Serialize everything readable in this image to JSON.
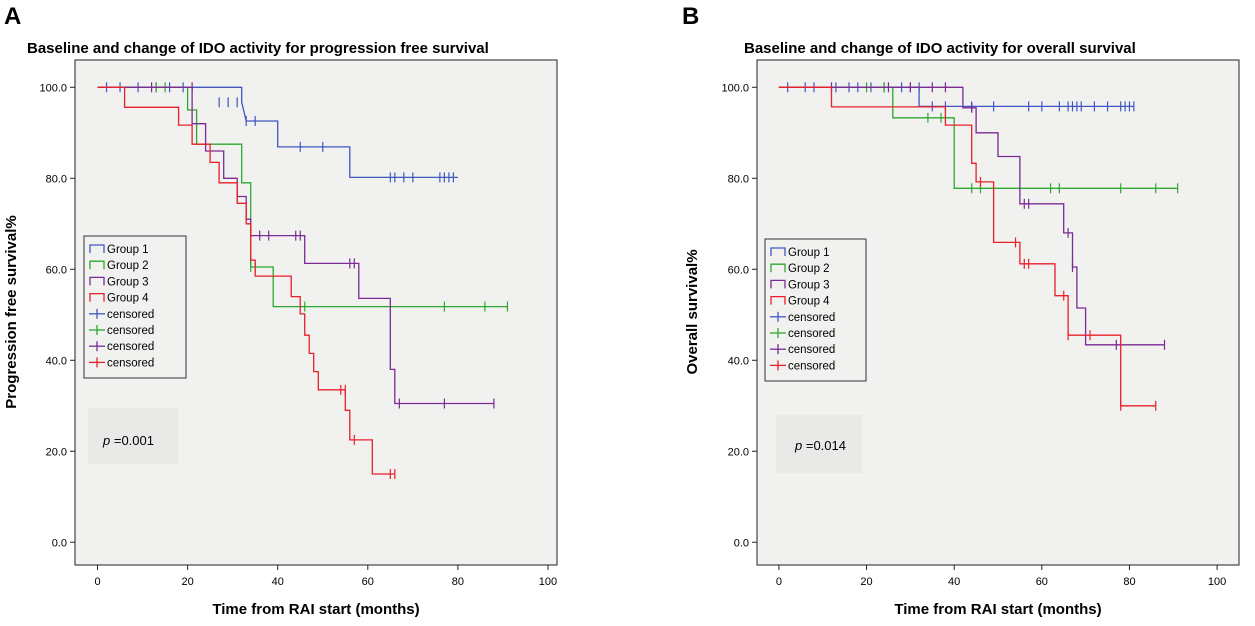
{
  "colors": {
    "group1": "#4058c0",
    "group2": "#2ea82e",
    "group3": "#7b2b93",
    "group4": "#e8202a",
    "plot_bg": "#f1f1f0"
  },
  "chart_data": [
    {
      "panel": "A",
      "type": "line",
      "title": "Baseline and change of IDO activity for progression free survival",
      "xlabel": "Time from RAI start (months)",
      "ylabel": "Progression free survival%",
      "xlim": [
        -5,
        102
      ],
      "ylim": [
        -5,
        106
      ],
      "xticks": [
        0,
        20,
        40,
        60,
        80,
        100
      ],
      "yticks": [
        0,
        20,
        40,
        60,
        80,
        100
      ],
      "ytick_labels": [
        "0.0",
        "20.0",
        "40.0",
        "60.0",
        "80.0",
        "100.0"
      ],
      "pvalue_p": "p",
      "pvalue_text": " =0.001",
      "legend": [
        "Group 1",
        "Group 2",
        "Group 3",
        "Group 4",
        "censored",
        "censored",
        "censored",
        "censored"
      ],
      "series": [
        {
          "name": "Group 1",
          "color_key": "group1",
          "steps": [
            [
              0,
              100
            ],
            [
              32,
              100
            ],
            [
              32,
              96.7
            ],
            [
              33,
              92.6
            ],
            [
              40,
              92.6
            ],
            [
              40,
              86.9
            ],
            [
              48,
              86.9
            ],
            [
              56,
              86.9
            ],
            [
              56,
              80.2
            ],
            [
              80,
              80.2
            ]
          ],
          "censored": [
            [
              2,
              100
            ],
            [
              5,
              100
            ],
            [
              9,
              100
            ],
            [
              13,
              100
            ],
            [
              16,
              100
            ],
            [
              19,
              100
            ],
            [
              27,
              96.7
            ],
            [
              29,
              96.7
            ],
            [
              31,
              96.7
            ],
            [
              33,
              92.6
            ],
            [
              35,
              92.6
            ],
            [
              45,
              86.9
            ],
            [
              50,
              86.9
            ],
            [
              65,
              80.2
            ],
            [
              66,
              80.2
            ],
            [
              68,
              80.2
            ],
            [
              70,
              80.2
            ],
            [
              76,
              80.2
            ],
            [
              77,
              80.2
            ],
            [
              78,
              80.2
            ],
            [
              79,
              80.2
            ]
          ]
        },
        {
          "name": "Group 2",
          "color_key": "group2",
          "steps": [
            [
              0,
              100
            ],
            [
              20,
              100
            ],
            [
              20,
              95
            ],
            [
              22,
              95
            ],
            [
              22,
              87.5
            ],
            [
              32,
              87.5
            ],
            [
              32,
              79
            ],
            [
              34,
              79
            ],
            [
              34,
              60.5
            ],
            [
              39,
              60.5
            ],
            [
              39,
              51.8
            ],
            [
              91,
              51.8
            ]
          ],
          "censored": [
            [
              13,
              100
            ],
            [
              15,
              100
            ],
            [
              34,
              60.5
            ],
            [
              35,
              60.5
            ],
            [
              46,
              51.8
            ],
            [
              77,
              51.8
            ],
            [
              86,
              51.8
            ],
            [
              91,
              51.8
            ]
          ]
        },
        {
          "name": "Group 3",
          "color_key": "group3",
          "steps": [
            [
              0,
              100
            ],
            [
              21,
              100
            ],
            [
              21,
              92
            ],
            [
              24,
              92
            ],
            [
              24,
              86
            ],
            [
              28,
              86
            ],
            [
              28,
              80
            ],
            [
              31,
              80
            ],
            [
              31,
              76
            ],
            [
              33,
              76
            ],
            [
              33,
              71
            ],
            [
              34,
              71
            ],
            [
              34,
              67.4
            ],
            [
              46,
              67.4
            ],
            [
              46,
              61.3
            ],
            [
              58,
              61.3
            ],
            [
              58,
              53.6
            ],
            [
              65,
              53.6
            ],
            [
              65,
              38
            ],
            [
              66,
              38
            ],
            [
              66,
              30.5
            ],
            [
              88,
              30.5
            ]
          ],
          "censored": [
            [
              12,
              100
            ],
            [
              21,
              100
            ],
            [
              31,
              76
            ],
            [
              36,
              67.4
            ],
            [
              38,
              67.4
            ],
            [
              44,
              67.4
            ],
            [
              45,
              67.4
            ],
            [
              56,
              61.3
            ],
            [
              57,
              61.3
            ],
            [
              67,
              30.5
            ],
            [
              77,
              30.5
            ],
            [
              88,
              30.5
            ]
          ]
        },
        {
          "name": "Group 4",
          "color_key": "group4",
          "steps": [
            [
              0,
              100
            ],
            [
              6,
              100
            ],
            [
              6,
              95.6
            ],
            [
              18,
              95.6
            ],
            [
              18,
              91.7
            ],
            [
              21,
              91.7
            ],
            [
              21,
              87.5
            ],
            [
              25,
              87.5
            ],
            [
              25,
              83.5
            ],
            [
              27,
              83.5
            ],
            [
              27,
              79
            ],
            [
              31,
              79
            ],
            [
              31,
              74.5
            ],
            [
              33,
              74.5
            ],
            [
              33,
              70
            ],
            [
              34,
              70
            ],
            [
              34,
              62
            ],
            [
              35,
              62
            ],
            [
              35,
              58.5
            ],
            [
              43,
              58.5
            ],
            [
              43,
              54
            ],
            [
              45,
              54
            ],
            [
              45,
              50.2
            ],
            [
              46,
              50.2
            ],
            [
              46,
              45.5
            ],
            [
              47,
              45.5
            ],
            [
              47,
              41.5
            ],
            [
              48,
              41.5
            ],
            [
              48,
              37.5
            ],
            [
              49,
              37.5
            ],
            [
              49,
              33.5
            ],
            [
              55,
              33.5
            ],
            [
              55,
              29
            ],
            [
              56,
              29
            ],
            [
              56,
              22.5
            ],
            [
              61,
              22.5
            ],
            [
              61,
              15
            ],
            [
              66,
              15
            ]
          ],
          "censored": [
            [
              54,
              33.5
            ],
            [
              55,
              33.5
            ],
            [
              57,
              22.5
            ],
            [
              65,
              15
            ],
            [
              66,
              15
            ]
          ]
        }
      ]
    },
    {
      "panel": "B",
      "type": "line",
      "title": "Baseline and change of IDO activity for overall survival",
      "xlabel": "Time from RAI start (months)",
      "ylabel": "Overall survival%",
      "xlim": [
        -5,
        105
      ],
      "ylim": [
        -5,
        106
      ],
      "xticks": [
        0,
        20,
        40,
        60,
        80,
        100
      ],
      "yticks": [
        0,
        20,
        40,
        60,
        80,
        100
      ],
      "ytick_labels": [
        "0.0",
        "20.0",
        "40.0",
        "60.0",
        "80.0",
        "100.0"
      ],
      "pvalue_p": "p",
      "pvalue_text": " =0.014",
      "legend": [
        "Group 1",
        "Group 2",
        "Group 3",
        "Group 4",
        "censored",
        "censored",
        "censored",
        "censored"
      ],
      "series": [
        {
          "name": "Group 1",
          "color_key": "group1",
          "steps": [
            [
              0,
              100
            ],
            [
              32,
              100
            ],
            [
              32,
              95.8
            ],
            [
              81,
              95.8
            ]
          ],
          "censored": [
            [
              2,
              100
            ],
            [
              6,
              100
            ],
            [
              8,
              100
            ],
            [
              13,
              100
            ],
            [
              16,
              100
            ],
            [
              18,
              100
            ],
            [
              21,
              100
            ],
            [
              24,
              100
            ],
            [
              28,
              100
            ],
            [
              30,
              100
            ],
            [
              32,
              100
            ],
            [
              35,
              95.8
            ],
            [
              38,
              95.8
            ],
            [
              44,
              95.8
            ],
            [
              49,
              95.8
            ],
            [
              57,
              95.8
            ],
            [
              60,
              95.8
            ],
            [
              64,
              95.8
            ],
            [
              66,
              95.8
            ],
            [
              67,
              95.8
            ],
            [
              68,
              95.8
            ],
            [
              69,
              95.8
            ],
            [
              72,
              95.8
            ],
            [
              75,
              95.8
            ],
            [
              78,
              95.8
            ],
            [
              79,
              95.8
            ],
            [
              80,
              95.8
            ],
            [
              81,
              95.8
            ]
          ]
        },
        {
          "name": "Group 2",
          "color_key": "group2",
          "steps": [
            [
              0,
              100
            ],
            [
              26,
              100
            ],
            [
              26,
              93.3
            ],
            [
              40,
              93.3
            ],
            [
              40,
              77.8
            ],
            [
              91,
              77.8
            ]
          ],
          "censored": [
            [
              20,
              100
            ],
            [
              24,
              100
            ],
            [
              34,
              93.3
            ],
            [
              37,
              93.3
            ],
            [
              44,
              77.8
            ],
            [
              46,
              77.8
            ],
            [
              62,
              77.8
            ],
            [
              64,
              77.8
            ],
            [
              78,
              77.8
            ],
            [
              86,
              77.8
            ],
            [
              91,
              77.8
            ]
          ]
        },
        {
          "name": "Group 3",
          "color_key": "group3",
          "steps": [
            [
              0,
              100
            ],
            [
              42,
              100
            ],
            [
              42,
              95.5
            ],
            [
              45,
              95.5
            ],
            [
              45,
              90
            ],
            [
              50,
              90
            ],
            [
              50,
              84.8
            ],
            [
              55,
              84.8
            ],
            [
              55,
              74.4
            ],
            [
              65,
              74.4
            ],
            [
              65,
              68
            ],
            [
              67,
              68
            ],
            [
              67,
              60.5
            ],
            [
              68,
              60.5
            ],
            [
              68,
              51.5
            ],
            [
              70,
              51.5
            ],
            [
              70,
              43.4
            ],
            [
              88,
              43.4
            ]
          ],
          "censored": [
            [
              12,
              100
            ],
            [
              25,
              100
            ],
            [
              30,
              100
            ],
            [
              35,
              100
            ],
            [
              38,
              100
            ],
            [
              44,
              95.5
            ],
            [
              56,
              74.4
            ],
            [
              57,
              74.4
            ],
            [
              66,
              68
            ],
            [
              67,
              60.5
            ],
            [
              77,
              43.4
            ],
            [
              88,
              43.4
            ]
          ]
        },
        {
          "name": "Group 4",
          "color_key": "group4",
          "steps": [
            [
              0,
              100
            ],
            [
              12,
              100
            ],
            [
              12,
              95.7
            ],
            [
              38,
              95.7
            ],
            [
              38,
              91.7
            ],
            [
              44,
              91.7
            ],
            [
              44,
              83.3
            ],
            [
              45,
              83.3
            ],
            [
              45,
              79.2
            ],
            [
              49,
              79.2
            ],
            [
              49,
              65.9
            ],
            [
              55,
              65.9
            ],
            [
              55,
              61.2
            ],
            [
              63,
              61.2
            ],
            [
              63,
              54.2
            ],
            [
              66,
              54.2
            ],
            [
              66,
              45.5
            ],
            [
              78,
              45.5
            ],
            [
              78,
              30
            ],
            [
              86,
              30
            ]
          ],
          "censored": [
            [
              46,
              79.2
            ],
            [
              54,
              65.9
            ],
            [
              56,
              61.2
            ],
            [
              57,
              61.2
            ],
            [
              65,
              54.2
            ],
            [
              66,
              45.5
            ],
            [
              71,
              45.5
            ],
            [
              78,
              30
            ],
            [
              86,
              30
            ]
          ]
        }
      ]
    }
  ]
}
